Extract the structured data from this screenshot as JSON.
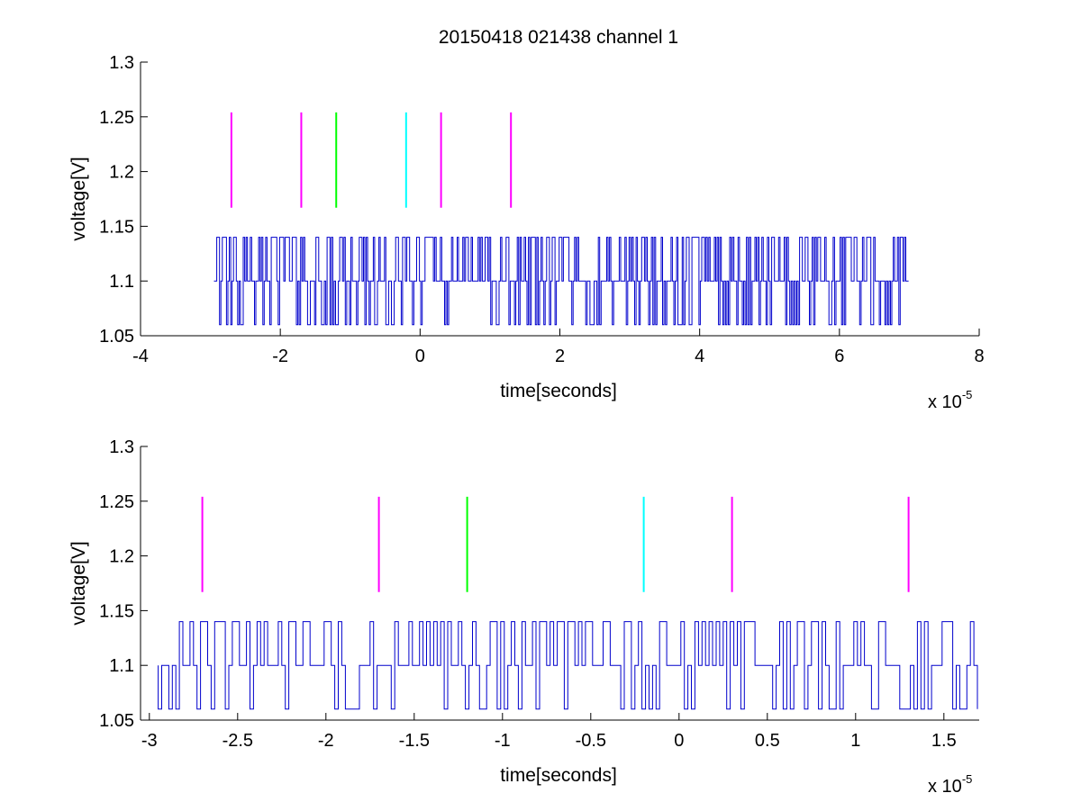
{
  "figure_title": "20150418 021438 channel 1",
  "chart_data": [
    {
      "type": "line",
      "title": "20150418 021438 channel 1",
      "xlabel": "time[seconds]",
      "ylabel": "voltage[V]",
      "xlim": [
        -4,
        8
      ],
      "ylim": [
        1.05,
        1.3
      ],
      "x_ticks": [
        -4,
        -2,
        0,
        2,
        4,
        6,
        8
      ],
      "x_tick_labels": [
        "-4",
        "-2",
        "0",
        "2",
        "4",
        "6",
        "8"
      ],
      "y_ticks": [
        1.05,
        1.1,
        1.15,
        1.2,
        1.25,
        1.3
      ],
      "y_tick_labels": [
        "1.05",
        "1.1",
        "1.15",
        "1.2",
        "1.25",
        "1.3"
      ],
      "x_multiplier_prefix": "x 10",
      "x_multiplier_exponent": "-5",
      "grid": false,
      "trace": {
        "color": "#0000cc",
        "x_range": [
          -2.95,
          7.0
        ],
        "baseline": 1.1,
        "levels": [
          1.06,
          1.1,
          1.14
        ],
        "note_values": "dense digitized noise toggling between 1.06, 1.1 and 1.14"
      },
      "markers": [
        {
          "x": -2.7,
          "color": "#ff00ff",
          "y_range": [
            1.167,
            1.254
          ]
        },
        {
          "x": -1.7,
          "color": "#ff00ff",
          "y_range": [
            1.167,
            1.254
          ]
        },
        {
          "x": -1.2,
          "color": "#00ff00",
          "y_range": [
            1.167,
            1.254
          ]
        },
        {
          "x": -0.2,
          "color": "#00ffff",
          "y_range": [
            1.167,
            1.254
          ]
        },
        {
          "x": 0.3,
          "color": "#ff00ff",
          "y_range": [
            1.167,
            1.254
          ]
        },
        {
          "x": 1.3,
          "color": "#ff00ff",
          "y_range": [
            1.167,
            1.254
          ]
        }
      ]
    },
    {
      "type": "line",
      "title": "",
      "xlabel": "time[seconds]",
      "ylabel": "voltage[V]",
      "xlim": [
        -3.05,
        1.7
      ],
      "ylim": [
        1.05,
        1.3
      ],
      "x_ticks": [
        -3,
        -2.5,
        -2,
        -1.5,
        -1,
        -0.5,
        0,
        0.5,
        1,
        1.5
      ],
      "x_tick_labels": [
        "-3",
        "-2.5",
        "-2",
        "-1.5",
        "-1",
        "-0.5",
        "0",
        "0.5",
        "1",
        "1.5"
      ],
      "y_ticks": [
        1.05,
        1.1,
        1.15,
        1.2,
        1.25,
        1.3
      ],
      "y_tick_labels": [
        "1.05",
        "1.1",
        "1.15",
        "1.2",
        "1.25",
        "1.3"
      ],
      "x_multiplier_prefix": "x 10",
      "x_multiplier_exponent": "-5",
      "grid": false,
      "trace": {
        "color": "#0000cc",
        "x_range": [
          -2.95,
          1.7
        ],
        "baseline": 1.1,
        "levels": [
          1.06,
          1.1,
          1.14
        ],
        "note_values": "digitized noise toggling between 1.06, 1.1 and 1.14"
      },
      "markers": [
        {
          "x": -2.7,
          "color": "#ff00ff",
          "y_range": [
            1.167,
            1.254
          ]
        },
        {
          "x": -1.7,
          "color": "#ff00ff",
          "y_range": [
            1.167,
            1.254
          ]
        },
        {
          "x": -1.2,
          "color": "#00ff00",
          "y_range": [
            1.167,
            1.254
          ]
        },
        {
          "x": -0.2,
          "color": "#00ffff",
          "y_range": [
            1.167,
            1.254
          ]
        },
        {
          "x": 0.3,
          "color": "#ff00ff",
          "y_range": [
            1.167,
            1.254
          ]
        },
        {
          "x": 1.3,
          "color": "#ff00ff",
          "y_range": [
            1.167,
            1.254
          ]
        }
      ]
    }
  ]
}
